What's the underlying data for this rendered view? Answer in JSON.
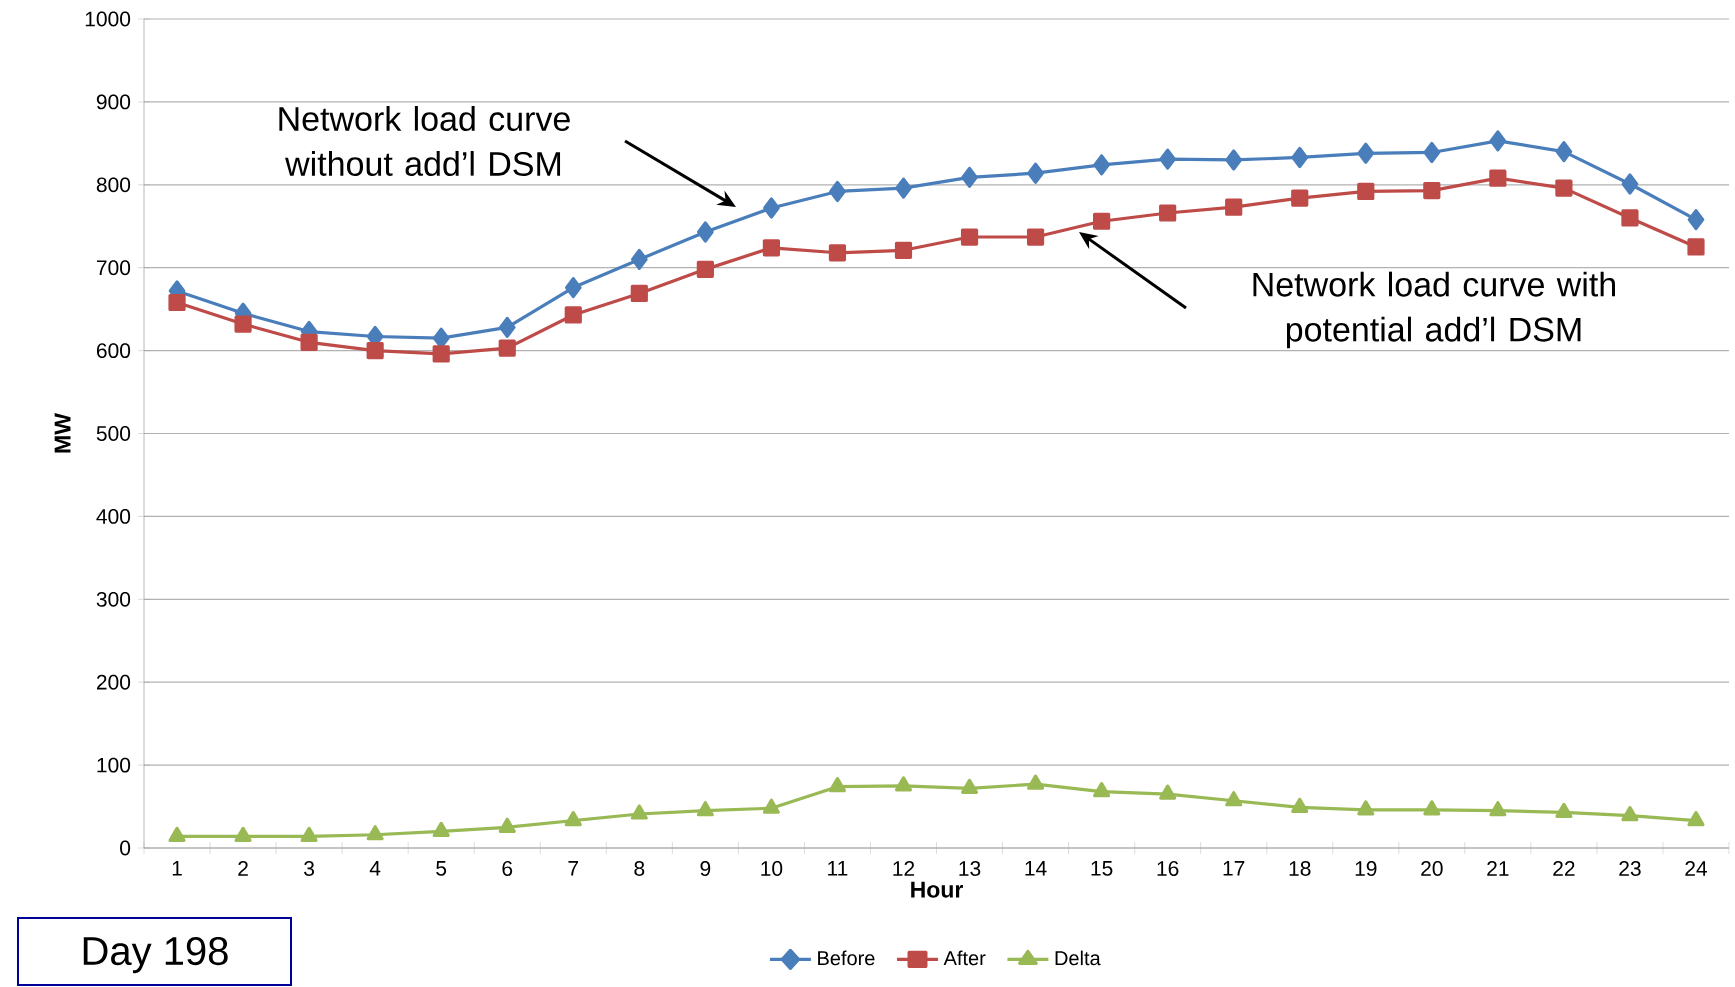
{
  "chart_data": {
    "type": "line",
    "xlabel": "Hour",
    "ylabel": "MW",
    "categories": [
      "1",
      "2",
      "3",
      "4",
      "5",
      "6",
      "7",
      "8",
      "9",
      "10",
      "11",
      "12",
      "13",
      "14",
      "15",
      "16",
      "17",
      "18",
      "19",
      "20",
      "21",
      "22",
      "23",
      "24"
    ],
    "series": [
      {
        "name": "Before",
        "color": "#4a7ebb",
        "marker": "diamond",
        "values": [
          672,
          645,
          623,
          617,
          615,
          628,
          676,
          710,
          743,
          772,
          792,
          796,
          809,
          814,
          824,
          831,
          830,
          833,
          838,
          839,
          853,
          840,
          801,
          758
        ]
      },
      {
        "name": "After",
        "color": "#be4b48",
        "marker": "square",
        "values": [
          658,
          632,
          610,
          600,
          596,
          603,
          643,
          669,
          698,
          724,
          718,
          721,
          737,
          737,
          756,
          766,
          773,
          784,
          792,
          793,
          808,
          796,
          760,
          725
        ]
      },
      {
        "name": "Delta",
        "color": "#98b954",
        "marker": "triangle",
        "values": [
          14,
          14,
          14,
          16,
          20,
          25,
          33,
          41,
          45,
          48,
          74,
          75,
          72,
          77,
          68,
          65,
          57,
          49,
          46,
          46,
          45,
          43,
          39,
          33
        ]
      }
    ],
    "ylim": [
      0,
      1000
    ],
    "yticks": [
      0,
      100,
      200,
      300,
      400,
      500,
      600,
      700,
      800,
      900,
      1000
    ],
    "grid": "y",
    "legend": "bottom",
    "line_style": "solid",
    "annotations": [
      "Network load curve without add’l DSM",
      "Network load curve with potential add’l DSM",
      "Day 198"
    ]
  }
}
